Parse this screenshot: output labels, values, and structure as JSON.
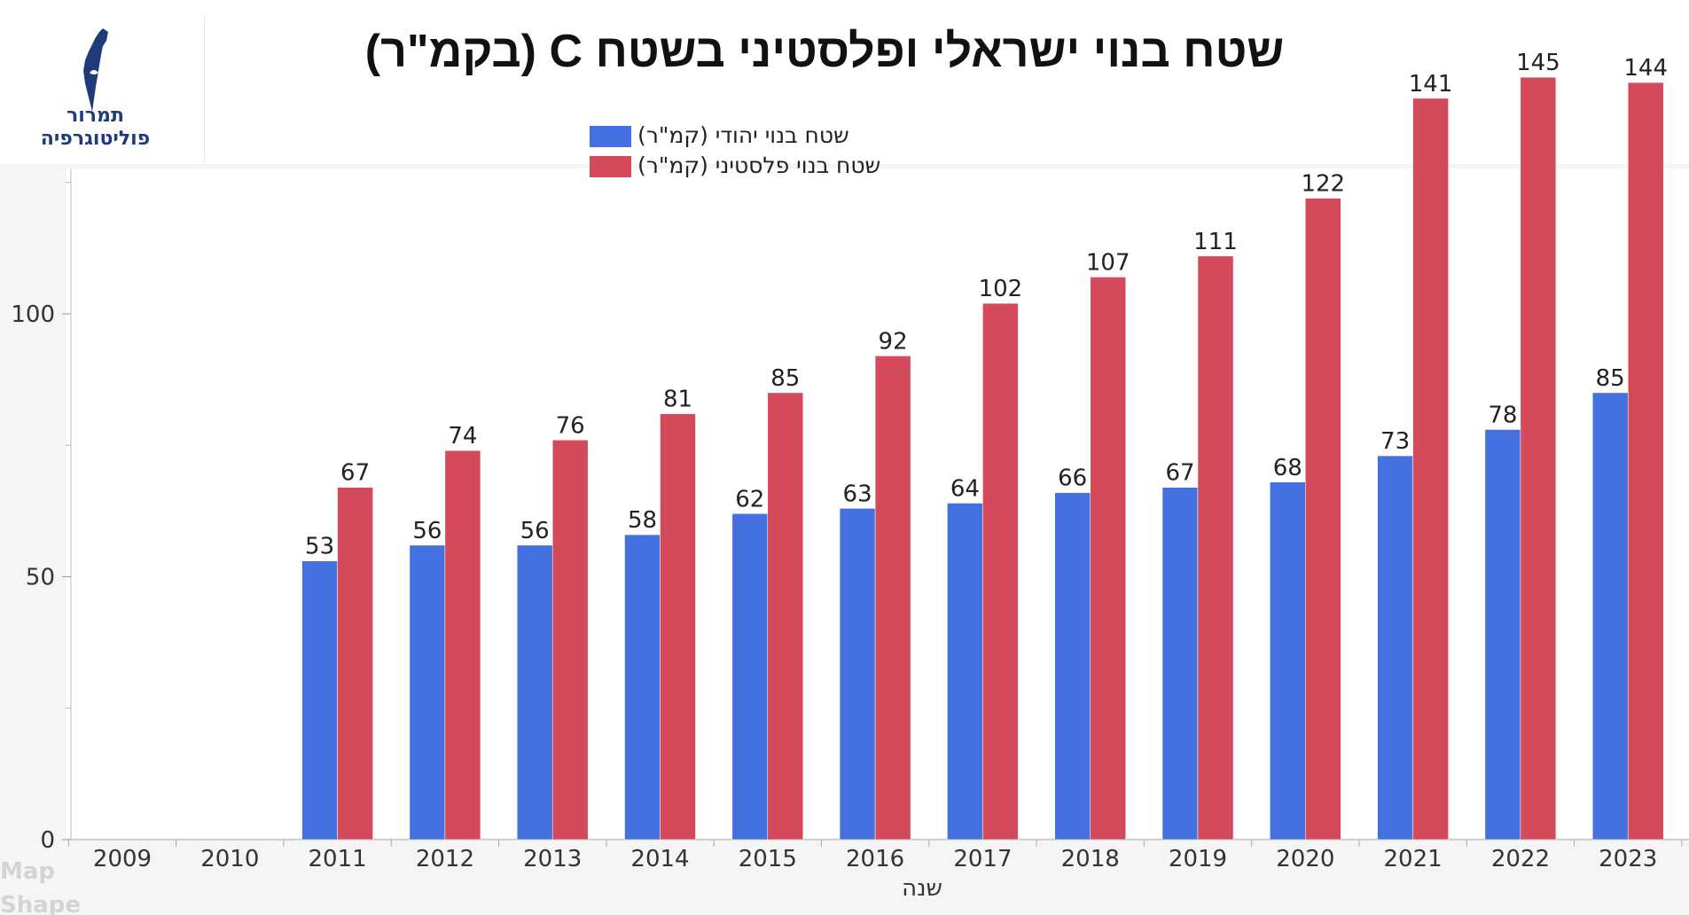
{
  "logo": {
    "line1": "תמרור",
    "line2": "פוליטוגרפיה",
    "color": "#1f3c7a"
  },
  "watermark": {
    "line1": "Map",
    "line2": "Shape"
  },
  "chart_data": {
    "type": "bar",
    "title": "שטח בנוי ישראלי ופלסטיני בשטח C (בקמ\"ר)",
    "xlabel": "שנה",
    "ylabel": "",
    "ylim": [
      0,
      125
    ],
    "yticks": [
      0,
      50,
      100
    ],
    "grid": false,
    "legend_position": "top-center",
    "categories": [
      "2009",
      "2010",
      "2011",
      "2012",
      "2013",
      "2014",
      "2015",
      "2016",
      "2017",
      "2018",
      "2019",
      "2020",
      "2021",
      "2022",
      "2023"
    ],
    "series": [
      {
        "name": "שטח בנוי יהודי (קמ\"ר)",
        "color": "#4571e0",
        "values": [
          null,
          null,
          53,
          56,
          56,
          58,
          62,
          63,
          64,
          66,
          67,
          68,
          73,
          78,
          85
        ],
        "labels": [
          "",
          "",
          "53",
          "56",
          "56",
          "58",
          "62",
          "63",
          "64",
          "66",
          "67",
          "68",
          "73",
          "78",
          "85"
        ]
      },
      {
        "name": "שטח בנוי פלסטיני (קמ\"ר)",
        "color": "#d44a5a",
        "values": [
          null,
          null,
          67,
          74,
          76,
          81,
          85,
          92,
          102,
          107,
          111,
          122,
          141,
          145,
          144
        ],
        "labels": [
          "",
          "",
          "67",
          "74",
          "76",
          "81",
          "85",
          "92",
          "102",
          "107",
          "111",
          "122",
          "141",
          "145",
          "144"
        ]
      }
    ]
  }
}
